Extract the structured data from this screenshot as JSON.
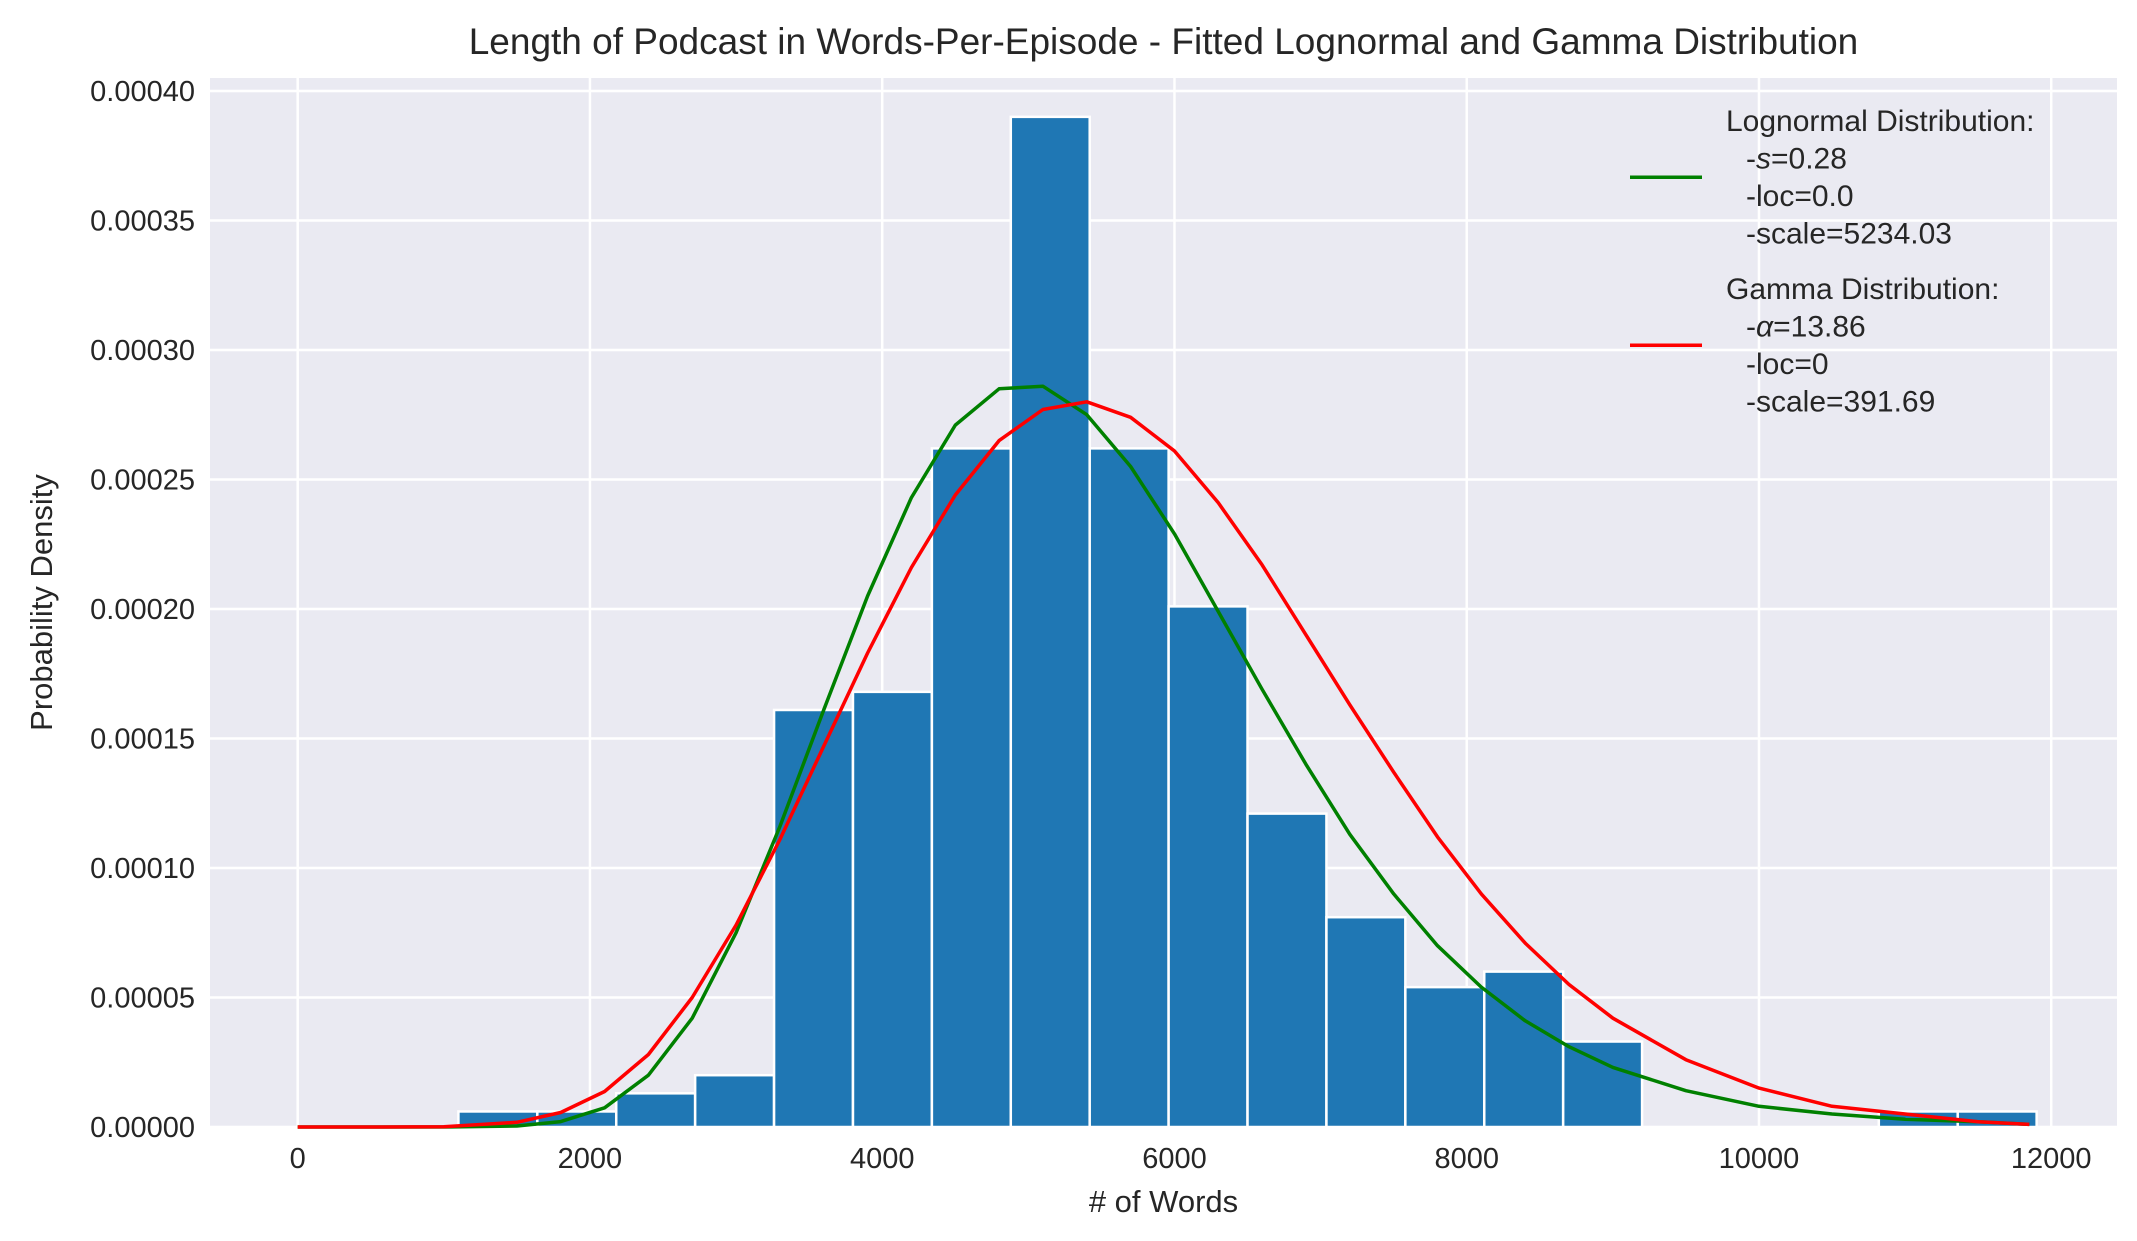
{
  "chart_data": {
    "type": "bar",
    "title": "Length of Podcast in Words-Per-Episode  - Fitted Lognormal and Gamma Distribution",
    "xlabel": "# of Words",
    "ylabel": "Probability Density",
    "xlim": [
      -600,
      12450
    ],
    "ylim": [
      0,
      0.000405
    ],
    "xticks": [
      0,
      2000,
      4000,
      6000,
      8000,
      10000,
      12000
    ],
    "xtick_labels": [
      "0",
      "2000",
      "4000",
      "6000",
      "8000",
      "10000",
      "12000"
    ],
    "yticks": [
      0,
      5e-05,
      0.0001,
      0.00015,
      0.0002,
      0.00025,
      0.0003,
      0.00035,
      0.0004
    ],
    "ytick_labels": [
      "0.00000",
      "0.00005",
      "0.00010",
      "0.00015",
      "0.00020",
      "0.00025",
      "0.00030",
      "0.00035",
      "0.00040"
    ],
    "grid": true,
    "legend_position": "top-right",
    "histogram": {
      "color": "#1f77b4",
      "bin_edges": [
        1100,
        1640,
        2180,
        2720,
        3260,
        3800,
        4340,
        4880,
        5420,
        5960,
        6500,
        7040,
        7580,
        8120,
        8660,
        9200,
        9740,
        10280,
        10820,
        11360,
        11900
      ],
      "values": [
        6e-06,
        6e-06,
        1.3e-05,
        2e-05,
        0.000161,
        0.000168,
        0.000262,
        0.00039,
        0.000262,
        0.000201,
        0.000121,
        8.1e-05,
        5.4e-05,
        6e-05,
        3.3e-05,
        0,
        0,
        0,
        6e-06,
        6e-06
      ]
    },
    "series": [
      {
        "name": "Lognormal Distribution:",
        "params": [
          "-s=0.28",
          "-loc=0.0",
          "-scale=5234.03"
        ],
        "param_symbol": "s",
        "color": "#008000",
        "x": [
          0,
          500,
          1000,
          1500,
          1800,
          2100,
          2400,
          2700,
          3000,
          3300,
          3600,
          3900,
          4200,
          4500,
          4800,
          5100,
          5400,
          5700,
          6000,
          6300,
          6600,
          6900,
          7200,
          7500,
          7800,
          8100,
          8400,
          8700,
          9000,
          9500,
          10000,
          10500,
          11000,
          11500,
          11850
        ],
        "y": [
          0,
          0,
          0,
          4e-07,
          2.1e-06,
          7.4e-06,
          2e-05,
          4.2e-05,
          7.5e-05,
          0.000116,
          0.000161,
          0.000205,
          0.000243,
          0.000271,
          0.000285,
          0.000286,
          0.000275,
          0.000255,
          0.000229,
          0.000199,
          0.000169,
          0.00014,
          0.000113,
          9e-05,
          7e-05,
          5.4e-05,
          4.1e-05,
          3.1e-05,
          2.3e-05,
          1.4e-05,
          8e-06,
          5e-06,
          3e-06,
          2e-06,
          1e-06
        ]
      },
      {
        "name": "Gamma Distribution:",
        "params": [
          "-α=13.86",
          "-loc=0",
          "-scale=391.69"
        ],
        "param_symbol": "α",
        "color": "#ff0000",
        "x": [
          0,
          500,
          1000,
          1500,
          1800,
          2100,
          2400,
          2700,
          3000,
          3300,
          3600,
          3900,
          4200,
          4500,
          4800,
          5100,
          5400,
          5700,
          6000,
          6300,
          6600,
          6900,
          7200,
          7500,
          7800,
          8100,
          8400,
          8700,
          9000,
          9500,
          10000,
          10500,
          11000,
          11500,
          11850
        ],
        "y": [
          0,
          0,
          1e-07,
          1.8e-06,
          5.6e-06,
          1.37e-05,
          2.8e-05,
          5e-05,
          7.8e-05,
          0.000111,
          0.000147,
          0.000183,
          0.000216,
          0.000244,
          0.000265,
          0.000277,
          0.00028,
          0.000274,
          0.000261,
          0.000241,
          0.000217,
          0.00019,
          0.000163,
          0.000137,
          0.000112,
          9e-05,
          7.1e-05,
          5.5e-05,
          4.2e-05,
          2.6e-05,
          1.5e-05,
          8e-06,
          5e-06,
          2e-06,
          1e-06
        ]
      }
    ]
  }
}
